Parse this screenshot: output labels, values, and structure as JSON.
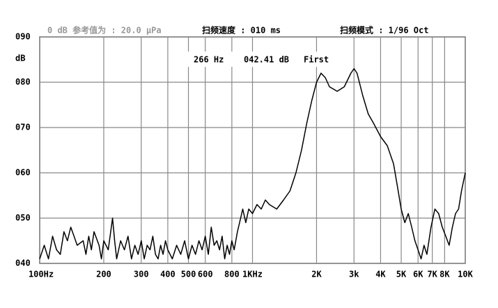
{
  "chart_data": {
    "type": "line",
    "header": {
      "reference": "0 dB 参考值为 : 20.0 μPa",
      "sweep_speed": "扫频速度 : 010 ms",
      "sweep_mode": "扫频模式 : 1/96 Oct"
    },
    "cursor": {
      "frequency": "266 Hz",
      "level": "042.41 dB",
      "mode": "First"
    },
    "y_label": "dB",
    "log_x": true,
    "grid": true,
    "color": "#000000",
    "xlim": [
      100,
      10000
    ],
    "ylim": [
      40,
      90
    ],
    "xticks": [
      {
        "value": 100,
        "label": "100Hz"
      },
      200,
      300,
      400,
      500,
      600,
      800,
      {
        "value": 1000,
        "label": "1KHz"
      },
      {
        "value": 2000,
        "label": "2K"
      },
      {
        "value": 3000,
        "label": "3k"
      },
      {
        "value": 4000,
        "label": "4K"
      },
      {
        "value": 5000,
        "label": "5K"
      },
      {
        "value": 6000,
        "label": "6K"
      },
      {
        "value": 7000,
        "label": "7K"
      },
      {
        "value": 8000,
        "label": "8K"
      },
      {
        "value": 10000,
        "label": "10K"
      }
    ],
    "yticks": [
      {
        "value": 90,
        "label": "090"
      },
      {
        "value": 80,
        "label": "080"
      },
      {
        "value": 70,
        "label": "070"
      },
      {
        "value": 60,
        "label": "060"
      },
      {
        "value": 50,
        "label": "050"
      },
      {
        "value": 40,
        "label": "040"
      }
    ],
    "x": [
      100,
      105,
      110,
      115,
      120,
      125,
      130,
      135,
      140,
      145,
      150,
      160,
      165,
      170,
      175,
      180,
      190,
      195,
      200,
      210,
      220,
      225,
      230,
      240,
      250,
      260,
      270,
      280,
      290,
      300,
      310,
      320,
      330,
      340,
      350,
      360,
      370,
      380,
      390,
      400,
      420,
      440,
      460,
      480,
      500,
      520,
      540,
      560,
      580,
      600,
      620,
      640,
      660,
      680,
      700,
      720,
      740,
      760,
      780,
      800,
      820,
      850,
      880,
      900,
      930,
      960,
      1000,
      1050,
      1100,
      1150,
      1200,
      1300,
      1400,
      1500,
      1600,
      1700,
      1800,
      1900,
      2000,
      2100,
      2200,
      2300,
      2500,
      2700,
      2900,
      3000,
      3100,
      3300,
      3500,
      3700,
      4000,
      4300,
      4600,
      4800,
      5000,
      5200,
      5400,
      5600,
      5800,
      6000,
      6200,
      6400,
      6600,
      6900,
      7200,
      7500,
      7800,
      8100,
      8400,
      8700,
      9000,
      9300,
      9600,
      10000
    ],
    "values": [
      41,
      44,
      41,
      46,
      43,
      42,
      47,
      45,
      48,
      46,
      44,
      45,
      42,
      46,
      43,
      47,
      44,
      41,
      45,
      43,
      50,
      45,
      41,
      45,
      43,
      46,
      41,
      44,
      42,
      45,
      41,
      44,
      43,
      46,
      42,
      41,
      44,
      42,
      45,
      43,
      41,
      44,
      42,
      45,
      41,
      44,
      42,
      45,
      43,
      46,
      42,
      48,
      44,
      45,
      43,
      46,
      41,
      44,
      42,
      45,
      43,
      47,
      50,
      52,
      49,
      52,
      51,
      53,
      52,
      54,
      53,
      52,
      54,
      56,
      60,
      65,
      71,
      76,
      80,
      82,
      81,
      79,
      78,
      79,
      82,
      83,
      82,
      77,
      73,
      71,
      68,
      66,
      62,
      57,
      52,
      49,
      51,
      48,
      45,
      43,
      41,
      44,
      42,
      48,
      52,
      51,
      48,
      46,
      44,
      48,
      51,
      52,
      56,
      60
    ]
  }
}
